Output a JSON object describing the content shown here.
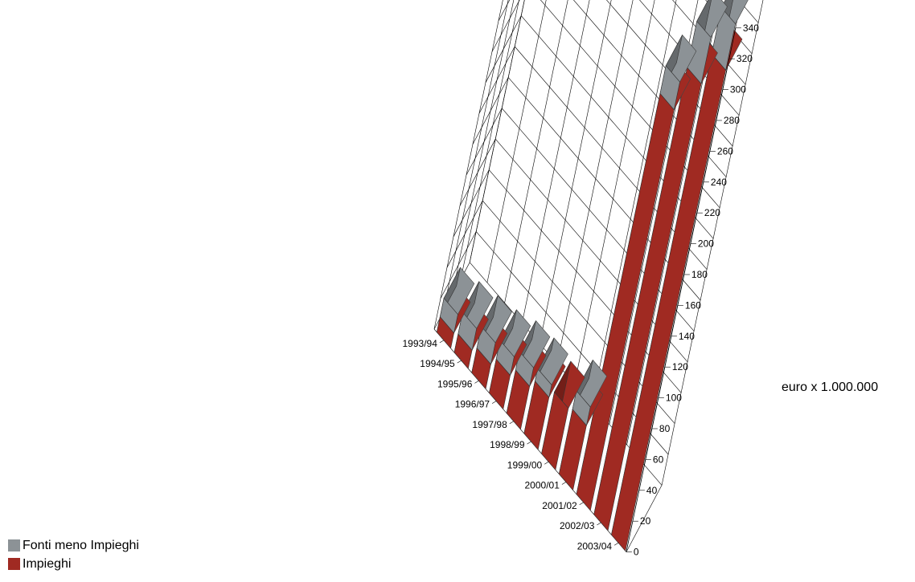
{
  "chart_data": {
    "type": "bar",
    "stacked": true,
    "categories": [
      "1993/94",
      "1994/95",
      "1995/96",
      "1996/97",
      "1997/98",
      "1998/99",
      "1999/00",
      "2000/01",
      "2001/02",
      "2002/03",
      "2003/04"
    ],
    "series": [
      {
        "name": "Impieghi",
        "values": [
          10,
          12,
          16,
          22,
          28,
          34,
          40,
          42,
          260,
          290,
          312
        ],
        "color": "#a02a22"
      },
      {
        "name": "Fonti meno Impieghi",
        "values": [
          12,
          14,
          14,
          12,
          12,
          8,
          0,
          12,
          18,
          30,
          30
        ],
        "color": "#8c9296"
      }
    ],
    "ylim": [
      0,
      340
    ],
    "yticks": [
      0,
      20,
      40,
      60,
      80,
      100,
      120,
      140,
      160,
      180,
      200,
      220,
      240,
      260,
      280,
      300,
      320,
      340
    ],
    "ylabel": "euro x 1.000.000",
    "grid": true,
    "legend_position": "bottom-left"
  }
}
